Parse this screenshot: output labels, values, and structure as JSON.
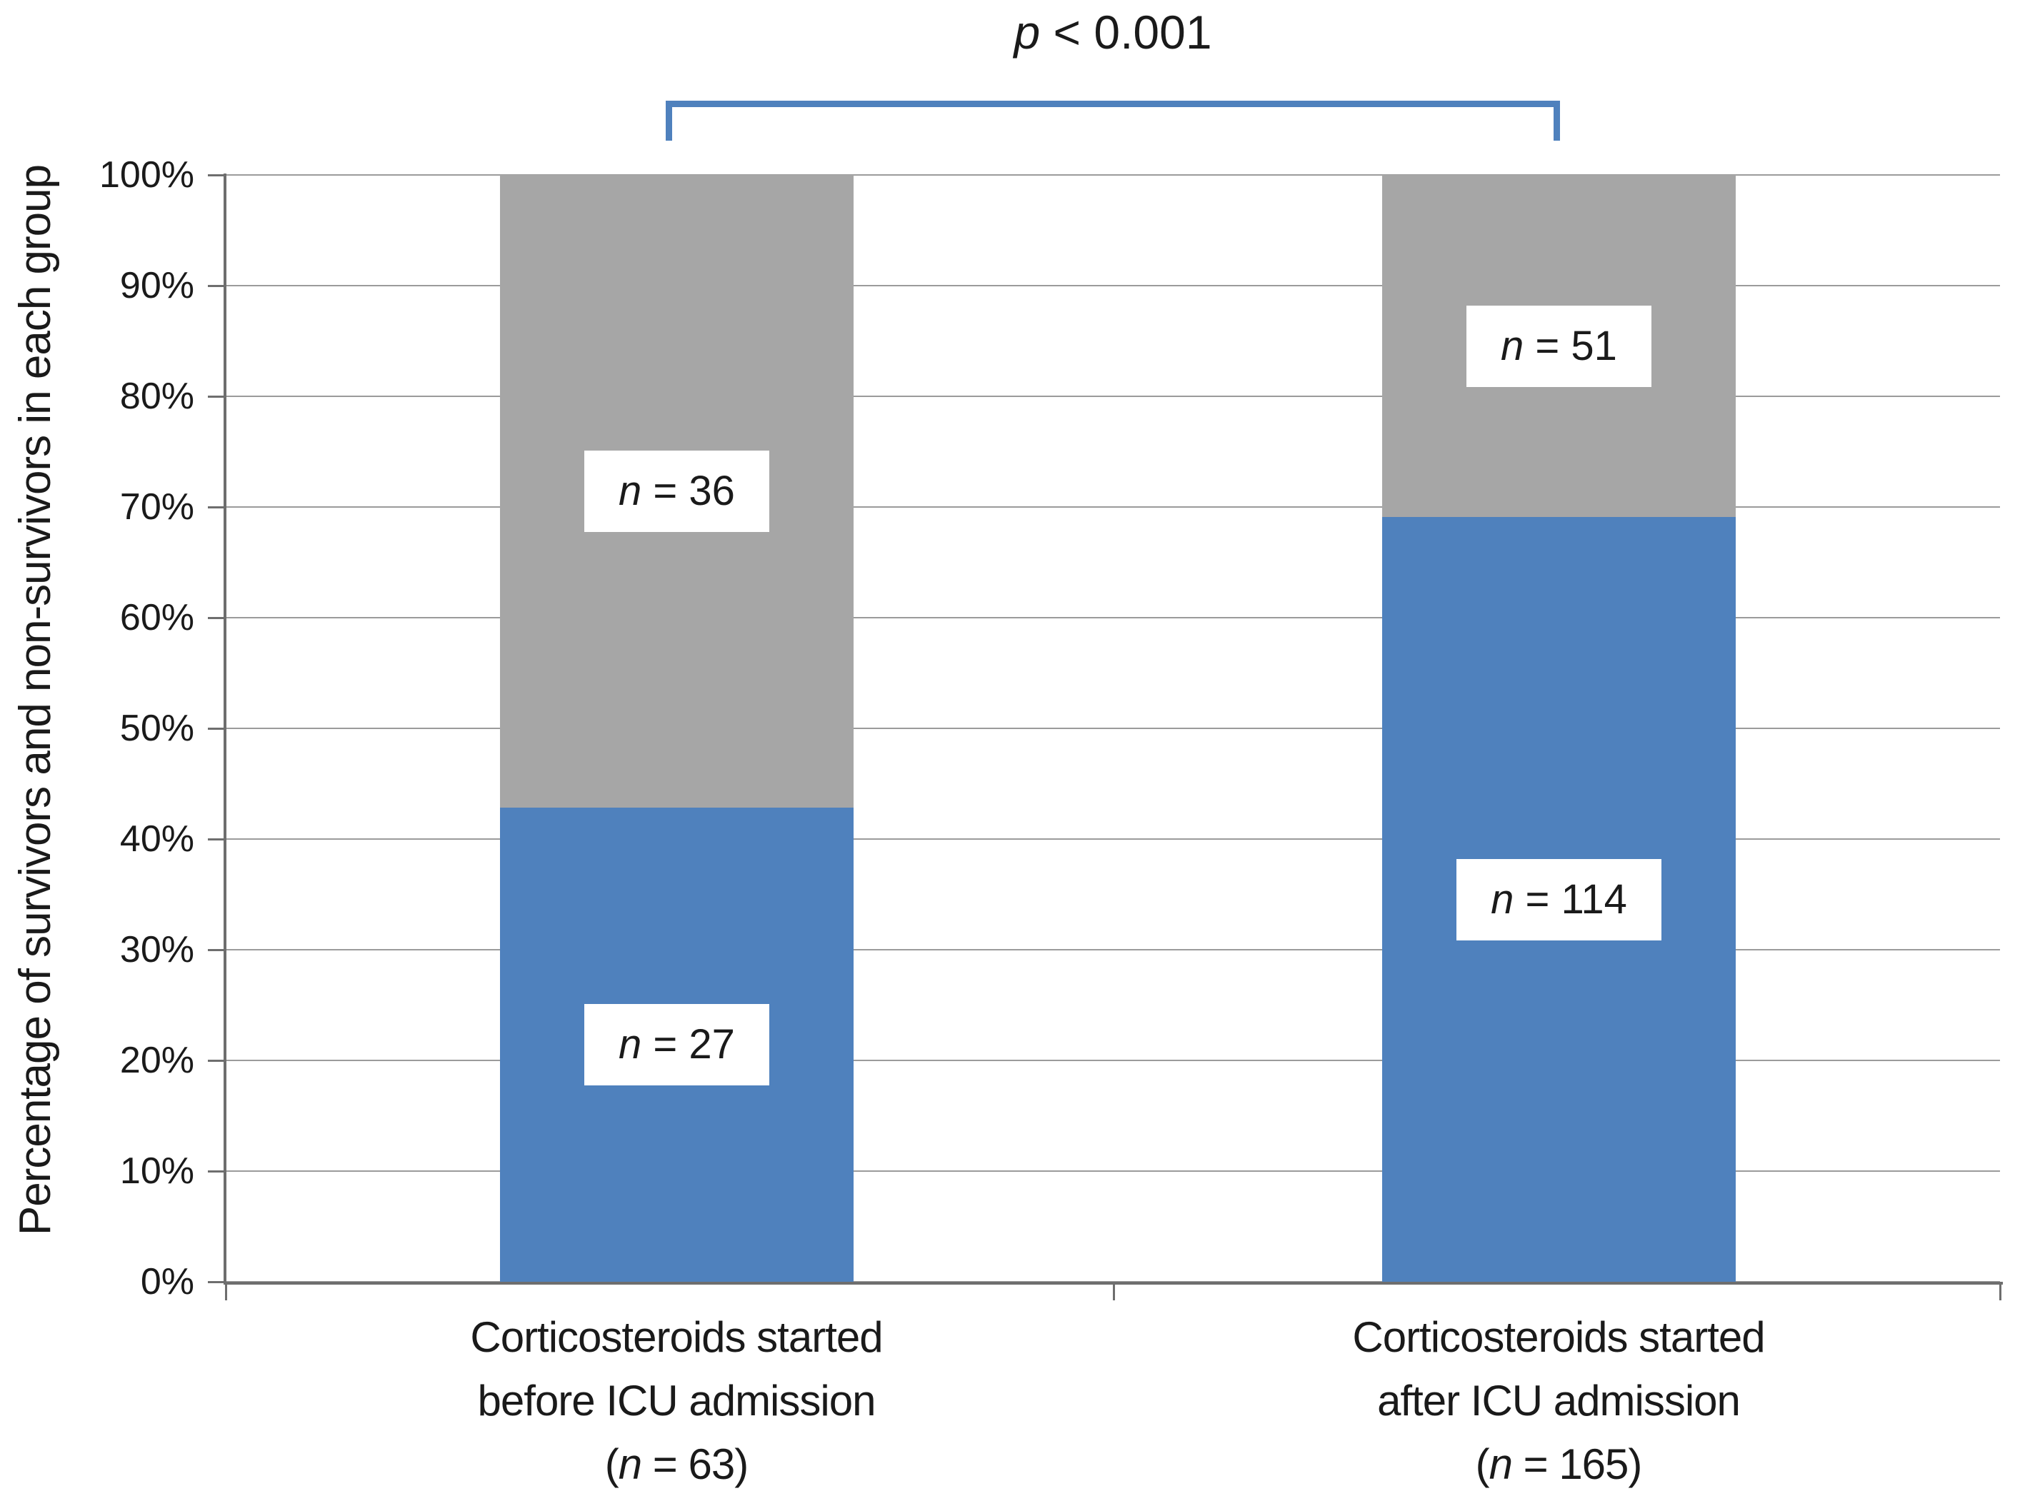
{
  "colors": {
    "bar_blue": "#4f81bd",
    "bar_gray": "#a6a6a6",
    "bracket_blue": "#4f81bd",
    "axis_line": "#6e6e6e",
    "gridline": "#9b9b9b",
    "text": "#1a1a1a",
    "label_box_bg": "#ffffff"
  },
  "y_axis": {
    "title": "Percentage of survivors and non-survivors in each group",
    "ticks": [
      "100%",
      "90%",
      "80%",
      "70%",
      "60%",
      "50%",
      "40%",
      "30%",
      "20%",
      "10%",
      "0%"
    ]
  },
  "p_annotation": {
    "italic": "p",
    "rest": " < 0.001"
  },
  "bars": [
    {
      "gray_label": {
        "italic": "n",
        "rest": " = 36"
      },
      "blue_label": {
        "italic": "n",
        "rest": " = 27"
      },
      "cat_line1": "Corticosteroids started",
      "cat_line2": "before ICU admission",
      "cat_line3": {
        "pre": "(",
        "italic": "n",
        "rest": " = 63)"
      }
    },
    {
      "gray_label": {
        "italic": "n",
        "rest": " = 51"
      },
      "blue_label": {
        "italic": "n",
        "rest": " = 114"
      },
      "cat_line1": "Corticosteroids started",
      "cat_line2": "after ICU admission",
      "cat_line3": {
        "pre": "(",
        "italic": "n",
        "rest": " = 165)"
      }
    }
  ],
  "chart_data": {
    "type": "bar",
    "stacked": true,
    "percent_stacked": true,
    "categories": [
      "Corticosteroids started before ICU admission (n = 63)",
      "Corticosteroids started after ICU admission (n = 165)"
    ],
    "series": [
      {
        "name": "bottom segment (blue)",
        "color": "#4f81bd",
        "counts": [
          27,
          114
        ],
        "values_pct": [
          42.86,
          69.09
        ],
        "labels": [
          "n = 27",
          "n = 114"
        ]
      },
      {
        "name": "top segment (gray)",
        "color": "#a6a6a6",
        "counts": [
          36,
          51
        ],
        "values_pct": [
          57.14,
          30.91
        ],
        "labels": [
          "n = 36",
          "n = 51"
        ]
      }
    ],
    "title": "",
    "xlabel": "",
    "ylabel": "Percentage of survivors and non-survivors in each group",
    "ylim": [
      0,
      100
    ],
    "ytick_interval_pct": 10,
    "grid": "horizontal",
    "legend": "none",
    "annotation": "p < 0.001 bracket spanning the two bars"
  }
}
